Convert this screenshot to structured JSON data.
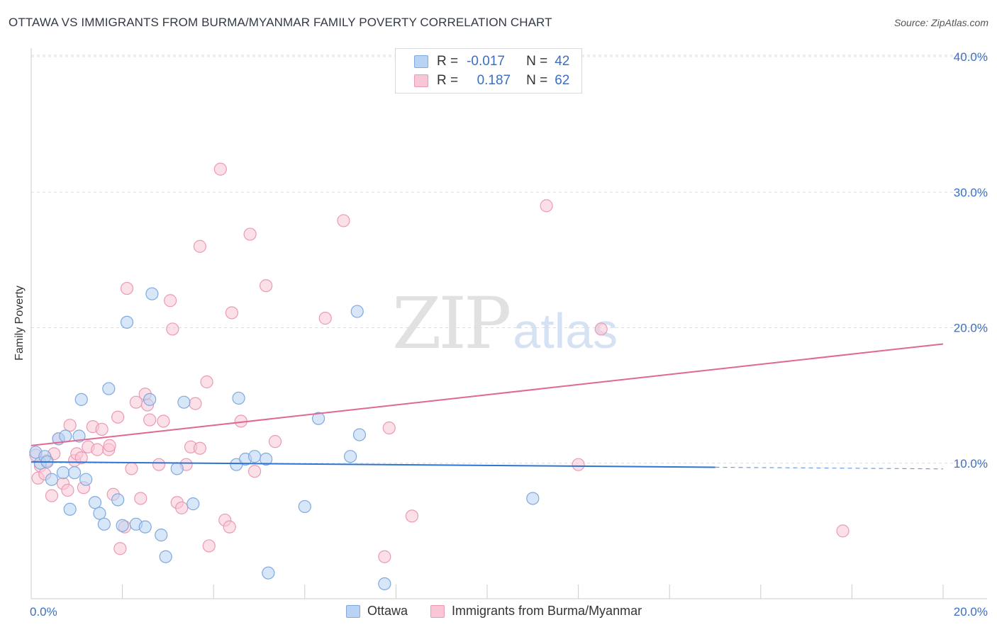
{
  "title": "OTTAWA VS IMMIGRANTS FROM BURMA/MYANMAR FAMILY POVERTY CORRELATION CHART",
  "source": "Source: ZipAtlas.com",
  "watermark": {
    "zip": "ZIP",
    "atlas": "atlas"
  },
  "colors": {
    "blue_fill": "#b8d3f3",
    "blue_stroke": "#7fa9df",
    "blue_line": "#2f74d0",
    "pink_fill": "#f9c6d5",
    "pink_stroke": "#eb9ab4",
    "pink_line": "#e06892",
    "tick_text": "#3a6fc4",
    "grid": "#dddddd"
  },
  "legend_top": {
    "rows": [
      {
        "r_label": "R =",
        "r_value": "-0.017",
        "n_label": "N =",
        "n_value": "42"
      },
      {
        "r_label": "R =",
        "r_value": "0.187",
        "n_label": "N =",
        "n_value": "62"
      }
    ]
  },
  "chart_data": {
    "type": "scatter",
    "title": "OTTAWA VS IMMIGRANTS FROM BURMA/MYANMAR FAMILY POVERTY CORRELATION CHART",
    "xlabel": "",
    "ylabel": "Family Poverty",
    "xlim": [
      0,
      20
    ],
    "ylim": [
      0,
      40
    ],
    "x_tick_labels": [
      "0.0%",
      "20.0%"
    ],
    "y_ticks": [
      10,
      20,
      30,
      40
    ],
    "y_tick_labels": [
      "10.0%",
      "20.0%",
      "30.0%",
      "40.0%"
    ],
    "grid": true,
    "legend_position": "bottom",
    "series": [
      {
        "name": "Ottawa",
        "r": -0.017,
        "n": 42,
        "trend": {
          "x0": 0,
          "y0": 10.1,
          "x1": 15,
          "y1": 9.7,
          "dashed_to_x": 20,
          "dashed_to_y": 9.58
        },
        "points": [
          [
            0.1,
            10.8
          ],
          [
            0.2,
            10.0
          ],
          [
            0.3,
            10.5
          ],
          [
            0.35,
            10.1
          ],
          [
            0.45,
            8.8
          ],
          [
            0.6,
            11.8
          ],
          [
            0.7,
            9.3
          ],
          [
            0.75,
            12.0
          ],
          [
            0.85,
            6.6
          ],
          [
            0.95,
            9.3
          ],
          [
            1.05,
            12.0
          ],
          [
            1.1,
            14.7
          ],
          [
            1.2,
            8.8
          ],
          [
            1.4,
            7.1
          ],
          [
            1.5,
            6.3
          ],
          [
            1.6,
            5.5
          ],
          [
            1.7,
            15.5
          ],
          [
            1.9,
            7.3
          ],
          [
            2.0,
            5.4
          ],
          [
            2.1,
            20.4
          ],
          [
            2.3,
            5.5
          ],
          [
            2.5,
            5.3
          ],
          [
            2.6,
            14.7
          ],
          [
            2.65,
            22.5
          ],
          [
            2.85,
            4.7
          ],
          [
            2.95,
            3.1
          ],
          [
            3.2,
            9.6
          ],
          [
            3.35,
            14.5
          ],
          [
            3.55,
            7.0
          ],
          [
            4.55,
            14.8
          ],
          [
            4.5,
            9.9
          ],
          [
            4.7,
            10.3
          ],
          [
            4.9,
            10.5
          ],
          [
            5.15,
            10.3
          ],
          [
            5.2,
            1.9
          ],
          [
            6.0,
            6.8
          ],
          [
            6.3,
            13.3
          ],
          [
            7.0,
            10.5
          ],
          [
            7.2,
            12.1
          ],
          [
            7.15,
            21.2
          ],
          [
            7.75,
            1.1
          ],
          [
            11.0,
            7.4
          ]
        ]
      },
      {
        "name": "Immigrants from Burma/Myanmar",
        "r": 0.187,
        "n": 62,
        "trend": {
          "x0": 0,
          "y0": 11.3,
          "x1": 20,
          "y1": 18.8
        },
        "points": [
          [
            0.1,
            10.6
          ],
          [
            0.15,
            8.9
          ],
          [
            0.2,
            9.8
          ],
          [
            0.3,
            9.2
          ],
          [
            0.35,
            10.2
          ],
          [
            0.45,
            7.6
          ],
          [
            0.5,
            10.7
          ],
          [
            0.6,
            11.8
          ],
          [
            0.7,
            8.5
          ],
          [
            0.8,
            8.0
          ],
          [
            0.85,
            12.8
          ],
          [
            0.95,
            10.2
          ],
          [
            1.0,
            10.7
          ],
          [
            1.1,
            10.4
          ],
          [
            1.15,
            8.2
          ],
          [
            1.25,
            11.2
          ],
          [
            1.35,
            12.7
          ],
          [
            1.45,
            11.0
          ],
          [
            1.55,
            12.5
          ],
          [
            1.7,
            11.0
          ],
          [
            1.72,
            11.3
          ],
          [
            1.8,
            7.7
          ],
          [
            1.9,
            13.4
          ],
          [
            1.95,
            3.7
          ],
          [
            2.05,
            5.3
          ],
          [
            2.1,
            22.9
          ],
          [
            2.2,
            9.6
          ],
          [
            2.3,
            14.5
          ],
          [
            2.4,
            7.4
          ],
          [
            2.5,
            15.1
          ],
          [
            2.55,
            14.3
          ],
          [
            2.6,
            13.2
          ],
          [
            2.8,
            9.9
          ],
          [
            2.9,
            13.1
          ],
          [
            3.05,
            22.0
          ],
          [
            3.1,
            19.9
          ],
          [
            3.2,
            7.1
          ],
          [
            3.3,
            6.7
          ],
          [
            3.4,
            9.9
          ],
          [
            3.5,
            11.2
          ],
          [
            3.6,
            14.4
          ],
          [
            3.7,
            11.1
          ],
          [
            3.7,
            26.0
          ],
          [
            3.85,
            16.0
          ],
          [
            3.9,
            3.9
          ],
          [
            4.15,
            31.7
          ],
          [
            4.25,
            5.8
          ],
          [
            4.4,
            21.1
          ],
          [
            4.35,
            5.3
          ],
          [
            4.6,
            13.1
          ],
          [
            4.8,
            26.9
          ],
          [
            4.9,
            9.4
          ],
          [
            5.15,
            23.1
          ],
          [
            5.35,
            11.6
          ],
          [
            6.45,
            20.7
          ],
          [
            6.85,
            27.9
          ],
          [
            7.75,
            3.1
          ],
          [
            7.85,
            12.6
          ],
          [
            8.35,
            6.1
          ],
          [
            11.3,
            29.0
          ],
          [
            12.0,
            9.9
          ],
          [
            12.5,
            19.9
          ],
          [
            17.8,
            5.0
          ]
        ]
      }
    ]
  }
}
